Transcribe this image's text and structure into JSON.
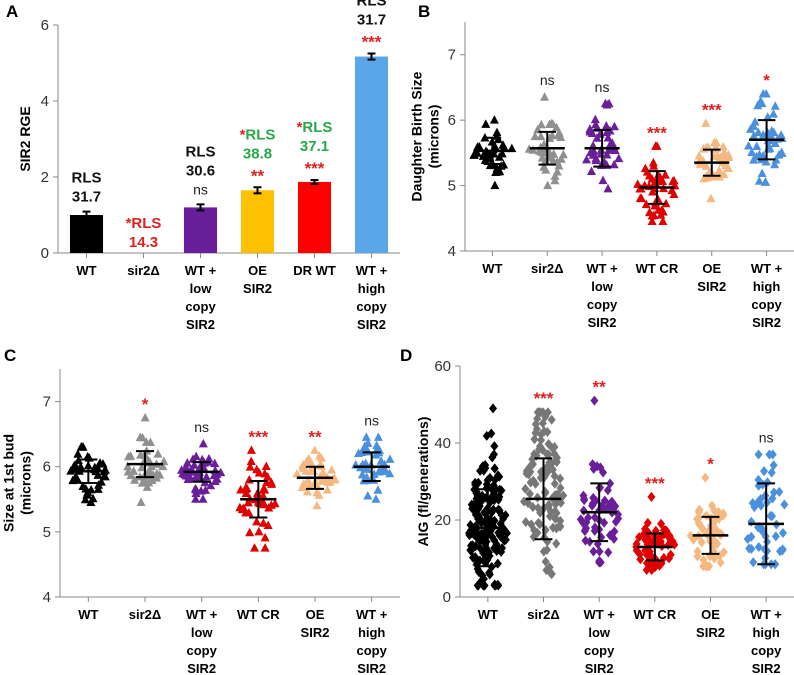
{
  "chart_data": [
    {
      "panel": "A",
      "type": "bar",
      "ylabel": "SIR2 RGE",
      "ylim": [
        0,
        6
      ],
      "yticks": [
        "0",
        "2",
        "4",
        "6"
      ],
      "categories": [
        [
          "WT"
        ],
        [
          "sir2Δ"
        ],
        [
          "WT +",
          "low",
          "copy",
          "SIR2"
        ],
        [
          "OE",
          "SIR2"
        ],
        [
          "DR WT"
        ],
        [
          "WT +",
          "high",
          "copy",
          "SIR2"
        ]
      ],
      "values": [
        1.0,
        0.0,
        1.2,
        1.65,
        1.87,
        5.17
      ],
      "errors": [
        0.09,
        0,
        0.08,
        0.08,
        0.05,
        0.08
      ],
      "colors": [
        "#000000",
        "#e00000",
        "#6a1f9a",
        "#ffc000",
        "#ff0000",
        "#5aa6e6"
      ],
      "annotations": [
        {
          "sig": "",
          "sig_color": "",
          "rls_star": "",
          "rls": [
            "RLS",
            "31.7"
          ],
          "rls_color": "#111111"
        },
        {
          "sig": "",
          "sig_color": "",
          "rls_star": "*",
          "rls": [
            "RLS",
            "14.3"
          ],
          "rls_color": "#e02020"
        },
        {
          "sig": "ns",
          "sig_color": "#222222",
          "rls_star": "",
          "rls": [
            "RLS",
            "30.6"
          ],
          "rls_color": "#111111"
        },
        {
          "sig": "**",
          "sig_color": "#e02020",
          "rls_star": "*",
          "rls": [
            "RLS",
            "38.8"
          ],
          "rls_color": "#27a84a"
        },
        {
          "sig": "***",
          "sig_color": "#e02020",
          "rls_star": "*",
          "rls": [
            "RLS",
            "37.1"
          ],
          "rls_color": "#27a84a"
        },
        {
          "sig": "***",
          "sig_color": "#e02020",
          "rls_star": "",
          "rls": [
            "RLS",
            "31.7"
          ],
          "rls_color": "#111111"
        }
      ]
    },
    {
      "panel": "B",
      "type": "scatter",
      "ylabel": [
        "Daughter Birth Size",
        "(microns)"
      ],
      "ylim": [
        4,
        7.5
      ],
      "yticks": [
        "4",
        "5",
        "6",
        "7"
      ],
      "categories": [
        [
          "WT"
        ],
        [
          "sir2Δ"
        ],
        [
          "WT +",
          "low",
          "copy",
          "SIR2"
        ],
        [
          "WT CR"
        ],
        [
          "OE",
          "SIR2"
        ],
        [
          "WT +",
          "high",
          "copy",
          "SIR2"
        ]
      ],
      "series": [
        {
          "name": "WT",
          "color": "#000000",
          "mean": 5.53,
          "sd": 0.2,
          "min": 5.0,
          "max": 6.0,
          "n": 40,
          "sig": ""
        },
        {
          "name": "sir2Δ",
          "color": "#909090",
          "mean": 5.57,
          "sd": 0.25,
          "min": 5.0,
          "max": 6.35,
          "n": 40,
          "sig": "ns"
        },
        {
          "name": "WT + low copy SIR2",
          "color": "#6a1f9a",
          "mean": 5.57,
          "sd": 0.28,
          "min": 4.95,
          "max": 6.25,
          "n": 45,
          "sig": "ns"
        },
        {
          "name": "WT CR",
          "color": "#e00000",
          "mean": 4.97,
          "sd": 0.25,
          "min": 4.45,
          "max": 5.6,
          "n": 45,
          "sig": "***"
        },
        {
          "name": "OE SIR2",
          "color": "#f5b880",
          "mean": 5.35,
          "sd": 0.2,
          "min": 4.8,
          "max": 5.95,
          "n": 40,
          "sig": "***"
        },
        {
          "name": "WT + high copy SIR2",
          "color": "#4a90dd",
          "mean": 5.7,
          "sd": 0.3,
          "min": 5.05,
          "max": 6.4,
          "n": 45,
          "sig": "*"
        }
      ]
    },
    {
      "panel": "C",
      "type": "scatter",
      "ylabel": [
        "Size at 1st bud",
        "(microns)"
      ],
      "ylim": [
        4,
        7.5
      ],
      "yticks": [
        "4",
        "5",
        "6",
        "7"
      ],
      "categories": [
        [
          "WT"
        ],
        [
          "sir2Δ"
        ],
        [
          "WT +",
          "low",
          "copy",
          "SIR2"
        ],
        [
          "WT CR"
        ],
        [
          "OE",
          "SIR2"
        ],
        [
          "WT +",
          "high",
          "copy",
          "SIR2"
        ]
      ],
      "series": [
        {
          "name": "WT",
          "color": "#000000",
          "mean": 5.93,
          "sd": 0.18,
          "min": 5.45,
          "max": 6.3,
          "n": 40,
          "sig": ""
        },
        {
          "name": "sir2Δ",
          "color": "#909090",
          "mean": 6.04,
          "sd": 0.2,
          "min": 5.45,
          "max": 6.75,
          "n": 40,
          "sig": "*"
        },
        {
          "name": "WT + low copy SIR2",
          "color": "#6a1f9a",
          "mean": 5.92,
          "sd": 0.15,
          "min": 5.5,
          "max": 6.35,
          "n": 45,
          "sig": "ns"
        },
        {
          "name": "WT CR",
          "color": "#e00000",
          "mean": 5.5,
          "sd": 0.28,
          "min": 4.75,
          "max": 6.25,
          "n": 45,
          "sig": "***"
        },
        {
          "name": "OE SIR2",
          "color": "#f5b880",
          "mean": 5.83,
          "sd": 0.17,
          "min": 5.4,
          "max": 6.25,
          "n": 40,
          "sig": "**"
        },
        {
          "name": "WT + high copy SIR2",
          "color": "#4a90dd",
          "mean": 6.0,
          "sd": 0.22,
          "min": 5.5,
          "max": 6.45,
          "n": 40,
          "sig": "ns"
        }
      ]
    },
    {
      "panel": "D",
      "type": "scatter",
      "ylabel": [
        "AIG (fl/generations)"
      ],
      "ylim": [
        0,
        60
      ],
      "yticks": [
        "0",
        "20",
        "40",
        "60"
      ],
      "categories": [
        [
          "WT"
        ],
        [
          "sir2Δ"
        ],
        [
          "WT +",
          "low",
          "copy",
          "SIR2"
        ],
        [
          "WT CR"
        ],
        [
          "OE",
          "SIR2"
        ],
        [
          "WT +",
          "high",
          "copy",
          "SIR2"
        ]
      ],
      "series": [
        {
          "name": "WT",
          "color": "#000000",
          "mean": 18.0,
          "sd": 10.0,
          "min": 3.0,
          "max": 49.0,
          "n": 170,
          "sig": ""
        },
        {
          "name": "sir2Δ",
          "color": "#777777",
          "mean": 25.5,
          "sd": 10.5,
          "min": 6.0,
          "max": 48.0,
          "n": 110,
          "sig": "***"
        },
        {
          "name": "WT + low copy SIR2",
          "color": "#6a1f9a",
          "mean": 22.0,
          "sd": 7.5,
          "min": 9.0,
          "max": 51.0,
          "n": 60,
          "sig": "**"
        },
        {
          "name": "WT CR",
          "color": "#e00000",
          "mean": 13.0,
          "sd": 3.5,
          "min": 7.0,
          "max": 26.0,
          "n": 60,
          "sig": "***"
        },
        {
          "name": "OE SIR2",
          "color": "#f5b880",
          "mean": 16.0,
          "sd": 4.8,
          "min": 8.0,
          "max": 31.0,
          "n": 55,
          "sig": "*"
        },
        {
          "name": "WT + high copy SIR2",
          "color": "#4a90dd",
          "mean": 19.0,
          "sd": 10.5,
          "min": 8.5,
          "max": 37.0,
          "n": 50,
          "sig": "ns"
        }
      ]
    }
  ]
}
